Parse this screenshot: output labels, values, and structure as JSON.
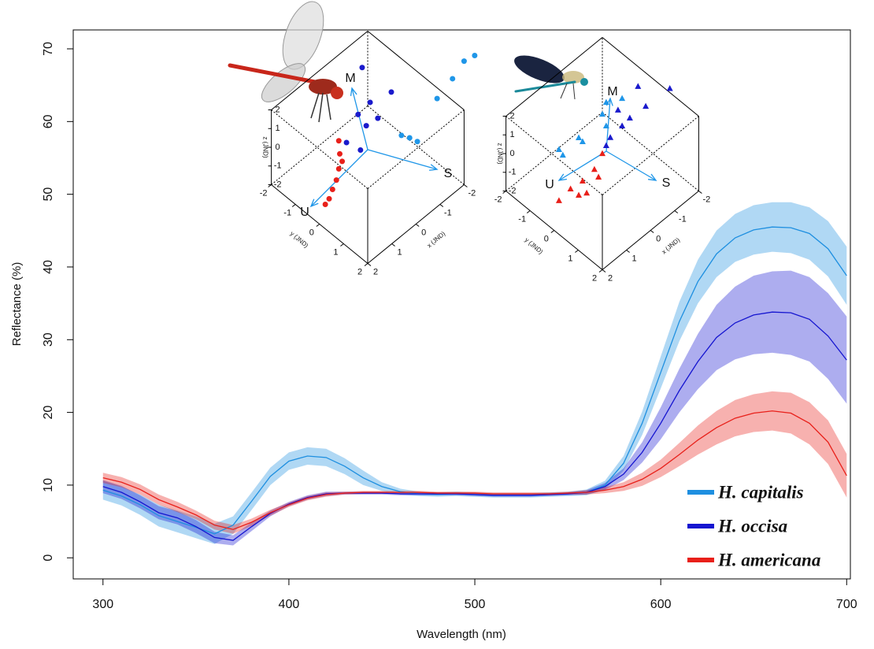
{
  "chart_data": [
    {
      "type": "line",
      "xlabel": "Wavelength (nm)",
      "ylabel": "Reflectance (%)",
      "xlim": [
        284,
        702
      ],
      "ylim": [
        -2.9,
        72.6
      ],
      "xticks": [
        300,
        400,
        500,
        600,
        700
      ],
      "yticks": [
        0,
        10,
        20,
        30,
        40,
        50,
        60,
        70
      ],
      "legend": "bottom-right",
      "band_opacity": 0.35,
      "x": [
        300,
        310,
        320,
        330,
        340,
        350,
        360,
        370,
        380,
        390,
        400,
        410,
        420,
        430,
        440,
        450,
        460,
        470,
        480,
        490,
        500,
        510,
        520,
        530,
        540,
        550,
        560,
        570,
        580,
        590,
        600,
        610,
        620,
        630,
        640,
        650,
        660,
        670,
        680,
        690,
        700
      ],
      "series": [
        {
          "name": "H. capitalis",
          "color": "#1e8fe0",
          "values": [
            9.3,
            8.5,
            7.3,
            5.8,
            5.0,
            4.2,
            3.3,
            4.5,
            7.8,
            11.2,
            13.3,
            14.0,
            13.8,
            12.6,
            11.0,
            9.8,
            9.1,
            8.8,
            8.7,
            8.8,
            8.7,
            8.6,
            8.6,
            8.6,
            8.7,
            8.8,
            9.0,
            10.0,
            13,
            18.5,
            25.5,
            32.5,
            38,
            41.8,
            44,
            45.1,
            45.5,
            45.4,
            44.6,
            42.5,
            38.8
          ],
          "ci": [
            1.3,
            1.3,
            1.4,
            1.5,
            1.5,
            1.5,
            1.4,
            1.2,
            1.2,
            1.2,
            1.2,
            1.2,
            1.2,
            1.1,
            1.0,
            0.6,
            0.4,
            0.3,
            0.3,
            0.3,
            0.3,
            0.3,
            0.3,
            0.3,
            0.3,
            0.3,
            0.4,
            0.6,
            1.0,
            1.6,
            2.2,
            2.7,
            3.0,
            3.2,
            3.3,
            3.4,
            3.4,
            3.5,
            3.6,
            3.8,
            4.0
          ]
        },
        {
          "name": "H. occisa",
          "color": "#1515d0",
          "values": [
            9.8,
            9.0,
            7.7,
            6.2,
            5.5,
            4.3,
            2.8,
            2.4,
            4.3,
            6.1,
            7.4,
            8.3,
            8.8,
            8.9,
            8.9,
            8.9,
            8.8,
            8.8,
            8.8,
            8.8,
            8.7,
            8.6,
            8.6,
            8.6,
            8.7,
            8.8,
            9.0,
            9.8,
            11.5,
            14.5,
            18.5,
            23,
            27,
            30.3,
            32.3,
            33.4,
            33.8,
            33.7,
            32.8,
            30.5,
            27.2
          ],
          "ci": [
            0.9,
            0.9,
            0.9,
            0.9,
            0.9,
            0.9,
            0.8,
            0.7,
            0.6,
            0.4,
            0.3,
            0.3,
            0.3,
            0.2,
            0.2,
            0.2,
            0.2,
            0.2,
            0.2,
            0.2,
            0.2,
            0.2,
            0.2,
            0.2,
            0.2,
            0.2,
            0.3,
            0.5,
            0.8,
            1.4,
            2.2,
            3.0,
            3.8,
            4.5,
            5.0,
            5.4,
            5.6,
            5.8,
            5.8,
            5.9,
            6.0
          ]
        },
        {
          "name": "H. americana",
          "color": "#e8201a",
          "values": [
            11.0,
            10.4,
            9.4,
            8.0,
            7.0,
            5.9,
            4.5,
            3.9,
            4.9,
            6.2,
            7.3,
            8.2,
            8.7,
            8.9,
            9.0,
            9.0,
            9.0,
            9.0,
            8.9,
            8.9,
            8.9,
            8.8,
            8.8,
            8.8,
            8.8,
            8.9,
            9.0,
            9.3,
            9.8,
            10.8,
            12.3,
            14.2,
            16.2,
            17.9,
            19.2,
            19.9,
            20.2,
            19.9,
            18.5,
            15.9,
            11.3
          ],
          "ci": [
            0.7,
            0.7,
            0.7,
            0.7,
            0.7,
            0.6,
            0.6,
            0.6,
            0.5,
            0.4,
            0.3,
            0.3,
            0.3,
            0.2,
            0.2,
            0.2,
            0.2,
            0.2,
            0.2,
            0.2,
            0.2,
            0.2,
            0.2,
            0.2,
            0.2,
            0.2,
            0.3,
            0.4,
            0.6,
            0.9,
            1.2,
            1.6,
            2.0,
            2.3,
            2.5,
            2.6,
            2.7,
            2.8,
            2.9,
            3.0,
            3.0
          ]
        }
      ]
    },
    {
      "type": "scatter3d",
      "marker": "circle",
      "xlabel": "x (JND)",
      "ylabel": "y (JND)",
      "zlabel": "z (JND)",
      "xlim": [
        -2,
        2
      ],
      "ylim": [
        -2,
        2
      ],
      "zlim": [
        -2,
        2
      ],
      "xticks": [
        -2,
        -1,
        0,
        1,
        2
      ],
      "yticks": [
        -2,
        -1,
        0,
        1,
        2
      ],
      "zticks": [
        -2,
        -1,
        0,
        1,
        2
      ],
      "axes": [
        "M",
        "S",
        "U"
      ],
      "axis_color": "#1f96e8",
      "series": [
        {
          "color": "#e8201a",
          "x": [
            1.1,
            1.08,
            1.03,
            1.1,
            1.15,
            1.23,
            1.3,
            1.38
          ],
          "y": [
            -0.1,
            -0.08,
            -0.03,
            -0.1,
            -0.15,
            -0.23,
            -0.3,
            -0.38
          ],
          "z": [
            1.4,
            0.7,
            0.3,
            -0.1,
            -0.7,
            -1.2,
            -1.7,
            -2.0
          ]
        },
        {
          "color": "#1a1acc",
          "x": [
            -0.39,
            -0.99,
            -0.55,
            -0.3,
            -0.71,
            -0.47,
            -0.06,
            -0.35
          ],
          "y": [
            -0.62,
            -0.01,
            -0.45,
            -0.7,
            -0.29,
            -0.53,
            -0.94,
            -0.65
          ],
          "z": [
            3.2,
            1.9,
            1.35,
            0.7,
            0.5,
            0.1,
            -0.8,
            -1.2
          ]
        },
        {
          "color": "#1f96e8",
          "x": [
            -3.22,
            -3,
            -2.76,
            -2.44,
            -1.87,
            -2.03,
            -1.7
          ],
          "y": [
            1.22,
            1,
            0.76,
            0.44,
            -0.13,
            0.03,
            -0.3
          ],
          "z": [
            2.8,
            2.5,
            1.56,
            0.5,
            -1.6,
            -1.8,
            -1.47
          ]
        }
      ]
    },
    {
      "type": "scatter3d",
      "marker": "triangle",
      "xlabel": "x (JND)",
      "ylabel": "y (JND)",
      "zlabel": "z (JND)",
      "xlim": [
        -2,
        2
      ],
      "ylim": [
        -2,
        2
      ],
      "zlim": [
        -2,
        2
      ],
      "xticks": [
        -2,
        -1,
        0,
        1,
        2
      ],
      "yticks": [
        -2,
        -1,
        0,
        1,
        2
      ],
      "zticks": [
        -2,
        -1,
        0,
        1,
        2
      ],
      "axes": [
        "M",
        "S",
        "U"
      ],
      "axis_color": "#1f96e8",
      "series": [
        {
          "color": "#e8201a",
          "x": [
            0.5,
            0.67,
            0.91,
            1.16,
            1.4,
            0.83,
            0.58,
            0.99
          ],
          "y": [
            0.5,
            0.34,
            0.09,
            -0.16,
            -0.4,
            0.18,
            0.42,
            0.01
          ],
          "z": [
            1.05,
            0.21,
            -0.42,
            -0.84,
            -1.47,
            -1.05,
            -0.21,
            -1.18
          ]
        },
        {
          "color": "#1a1acc",
          "x": [
            -0.83,
            -1.07,
            -1.4,
            -1.24,
            -0.91,
            -0.67,
            -0.58,
            -1.65
          ],
          "y": [
            -0.18,
            0.07,
            0.4,
            0.24,
            -0.09,
            -0.34,
            -0.42,
            1.15
          ],
          "z": [
            1.26,
            0.84,
            1.47,
            2.53,
            0.42,
            -0.21,
            -0.63,
            2.95
          ]
        },
        {
          "color": "#1f96e8",
          "x": [
            0.4,
            -0.01,
            -0.09,
            -0.58,
            -0.91,
            -0.58,
            -0.5,
            0.32
          ],
          "y": [
            -1.4,
            -0.99,
            -0.91,
            -0.42,
            -0.09,
            -0.42,
            -0.5,
            -1.32
          ],
          "z": [
            -0.84,
            -0.21,
            -0.42,
            1.68,
            1.89,
            0.42,
            1.05,
            -1.14
          ]
        }
      ]
    }
  ]
}
